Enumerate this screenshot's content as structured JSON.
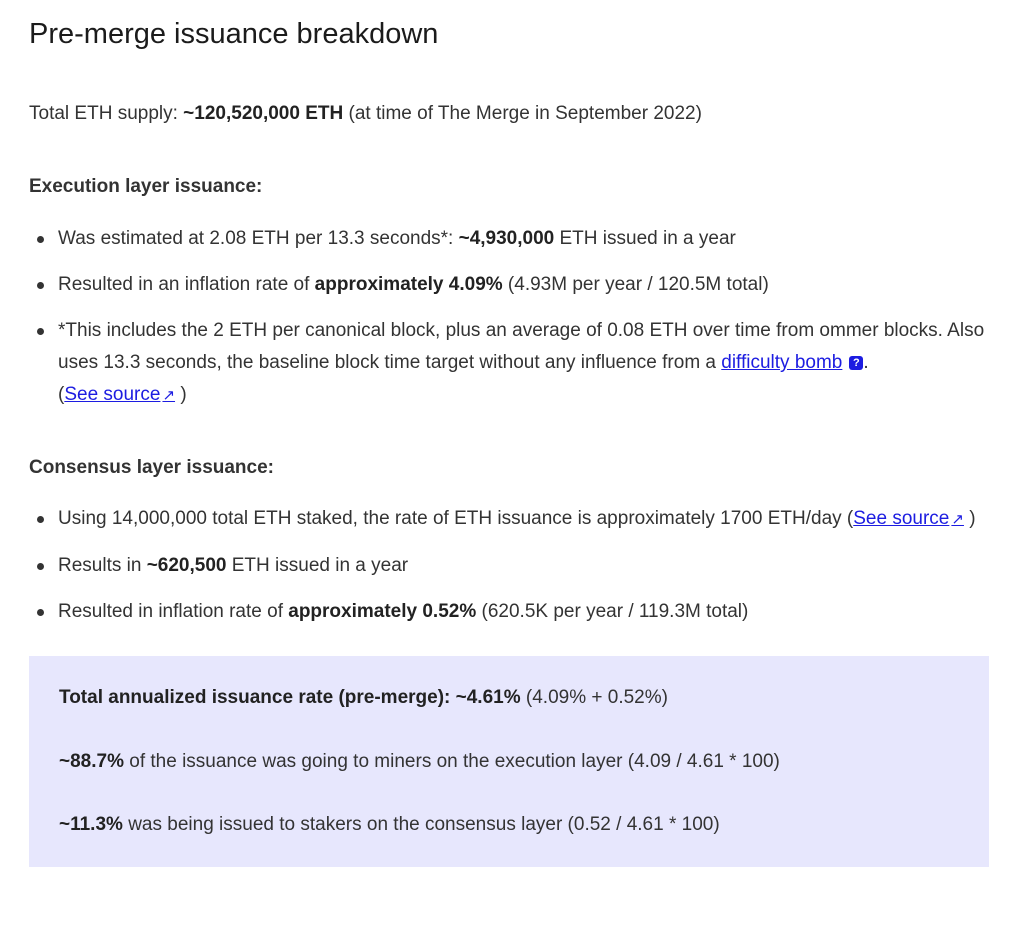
{
  "title": "Pre-merge issuance breakdown",
  "supply": {
    "label": "Total ETH supply: ",
    "value": "~120,520,000 ETH",
    "note": " (at time of The Merge in September 2022)"
  },
  "execution": {
    "heading": "Execution layer issuance:",
    "items": [
      {
        "pre": "Was estimated at 2.08 ETH per 13.3 seconds*: ",
        "bold": "~4,930,000",
        "post": " ETH issued in a year"
      },
      {
        "pre": "Resulted in an inflation rate of ",
        "bold": "approximately 4.09%",
        "post": " (4.93M per year / 120.5M total)"
      }
    ],
    "footnote": {
      "text1": "*This includes the 2 ETH per canonical block, plus an average of 0.08 ETH over time from ommer blocks. Also uses 13.3 seconds, the baseline block time target without any influence from a ",
      "link_label": "difficulty bomb",
      "help_icon": "?",
      "text2": ".",
      "open_paren": "(",
      "source_link": "See source",
      "external_icon": "↗",
      "close_paren": ")"
    }
  },
  "consensus": {
    "heading": "Consensus layer issuance:",
    "item1": {
      "pre": "Using 14,000,000 total ETH staked, the rate of ETH issuance is approximately 1700 ETH/day (",
      "link_label": "See source",
      "external_icon": "↗",
      "close_paren": ")"
    },
    "items": [
      {
        "pre": "Results in ",
        "bold": "~620,500",
        "post": " ETH issued in a year"
      },
      {
        "pre": "Resulted in inflation rate of ",
        "bold": "approximately 0.52%",
        "post": " (620.5K per year / 119.3M total)"
      }
    ]
  },
  "summary": {
    "total_label": "Total annualized issuance rate (pre-merge): ",
    "total_value": "~4.61%",
    "total_note": " (4.09% + 0.52%)",
    "miners_value": "~88.7%",
    "miners_text": " of the issuance was going to miners on the execution layer (4.09 / 4.61 * 100)",
    "stakers_value": "~11.3%",
    "stakers_text": " was being issued to stakers on the consensus layer (0.52 / 4.61 * 100)"
  },
  "colors": {
    "link": "#1c1ce1",
    "callout_background": "#e7e7fd",
    "text": "#333333"
  }
}
